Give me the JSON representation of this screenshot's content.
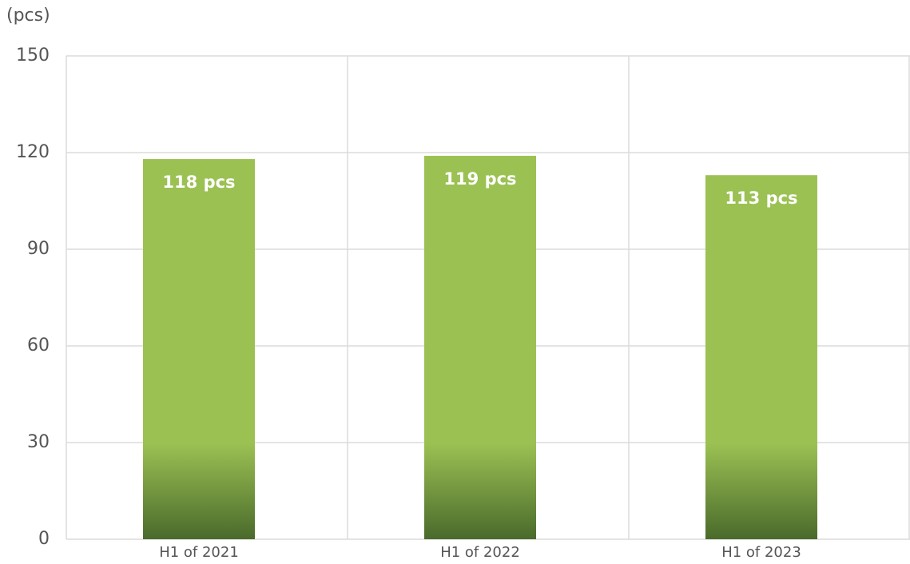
{
  "chart_data": {
    "type": "bar",
    "y_label": "(pcs)",
    "categories": [
      "H1 of 2021",
      "H1 of 2022",
      "H1 of 2023"
    ],
    "values": [
      118,
      119,
      113
    ],
    "value_labels": [
      "118 pcs",
      "119 pcs",
      "113 pcs"
    ],
    "color": "#9bc153",
    "color_dark": "#4a6a2b",
    "ylim": [
      0,
      150
    ],
    "yticks": [
      0,
      30,
      60,
      90,
      120,
      150
    ],
    "grid": true
  }
}
